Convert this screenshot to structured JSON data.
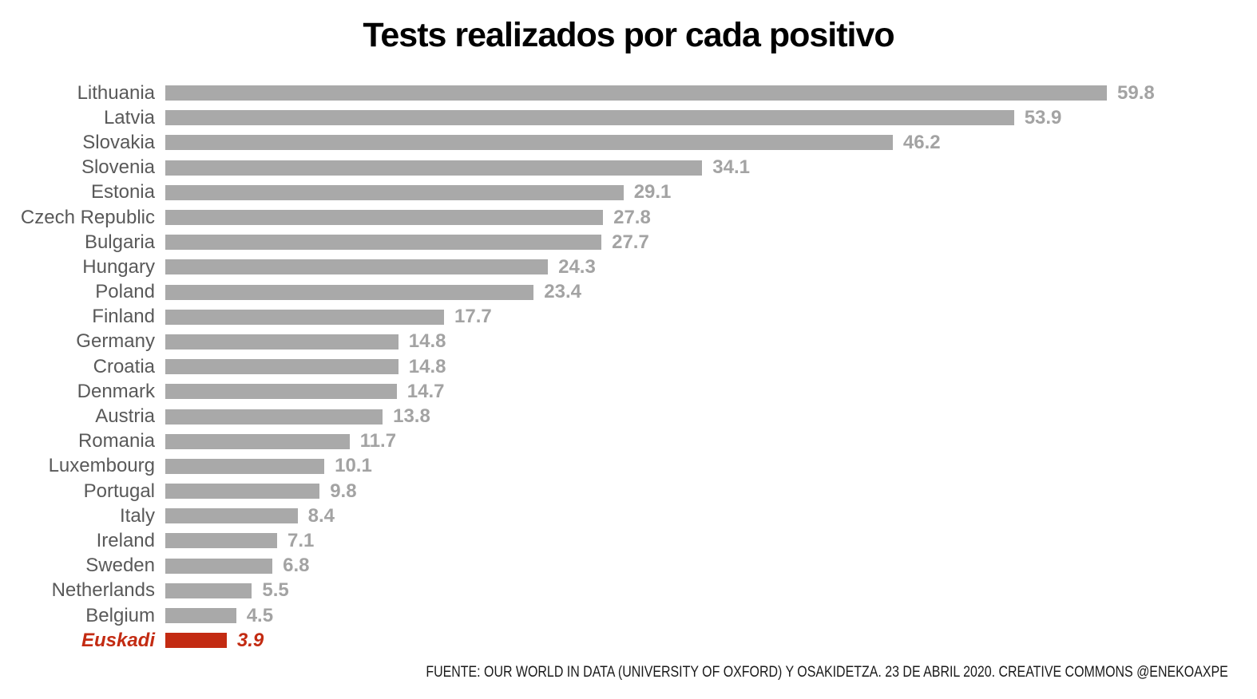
{
  "title": "Tests realizados por cada positivo",
  "footer": "FUENTE: OUR WORLD IN DATA (UNIVERSITY OF OXFORD) Y OSAKIDETZA. 23 DE ABRIL 2020. CREATIVE COMMONS @ENEKOAXPE",
  "colors": {
    "title": "#000000",
    "bar": "#a9a9a9",
    "label": "#595959",
    "value": "#a3a3a3",
    "highlight": "#c32b12"
  },
  "chart_data": {
    "type": "bar",
    "orientation": "horizontal",
    "title": "Tests realizados por cada positivo",
    "categories": [
      "Lithuania",
      "Latvia",
      "Slovakia",
      "Slovenia",
      "Estonia",
      "Czech Republic",
      "Bulgaria",
      "Hungary",
      "Poland",
      "Finland",
      "Germany",
      "Croatia",
      "Denmark",
      "Austria",
      "Romania",
      "Luxembourg",
      "Portugal",
      "Italy",
      "Ireland",
      "Sweden",
      "Netherlands",
      "Belgium",
      "Euskadi"
    ],
    "values": [
      59.8,
      53.9,
      46.2,
      34.1,
      29.1,
      27.8,
      27.7,
      24.3,
      23.4,
      17.7,
      14.8,
      14.8,
      14.7,
      13.8,
      11.7,
      10.1,
      9.8,
      8.4,
      7.1,
      6.8,
      5.5,
      4.5,
      3.9
    ],
    "value_labels": [
      "59.8",
      "53.9",
      "46.2",
      "34.1",
      "29.1",
      "27.8",
      "27.7",
      "24.3",
      "23.4",
      "17.7",
      "14.8",
      "14.8",
      "14.7",
      "13.8",
      "11.7",
      "10.1",
      "9.8",
      "8.4",
      "7.1",
      "6.8",
      "5.5",
      "4.5",
      "3.9"
    ],
    "highlight_category": "Euskadi",
    "xlim": [
      0,
      59.8
    ],
    "grid": false,
    "legend": false,
    "sorted": "descending",
    "source": "FUENTE: OUR WORLD IN DATA (UNIVERSITY OF OXFORD) Y OSAKIDETZA. 23 DE ABRIL 2020. CREATIVE COMMONS @ENEKOAXPE"
  }
}
